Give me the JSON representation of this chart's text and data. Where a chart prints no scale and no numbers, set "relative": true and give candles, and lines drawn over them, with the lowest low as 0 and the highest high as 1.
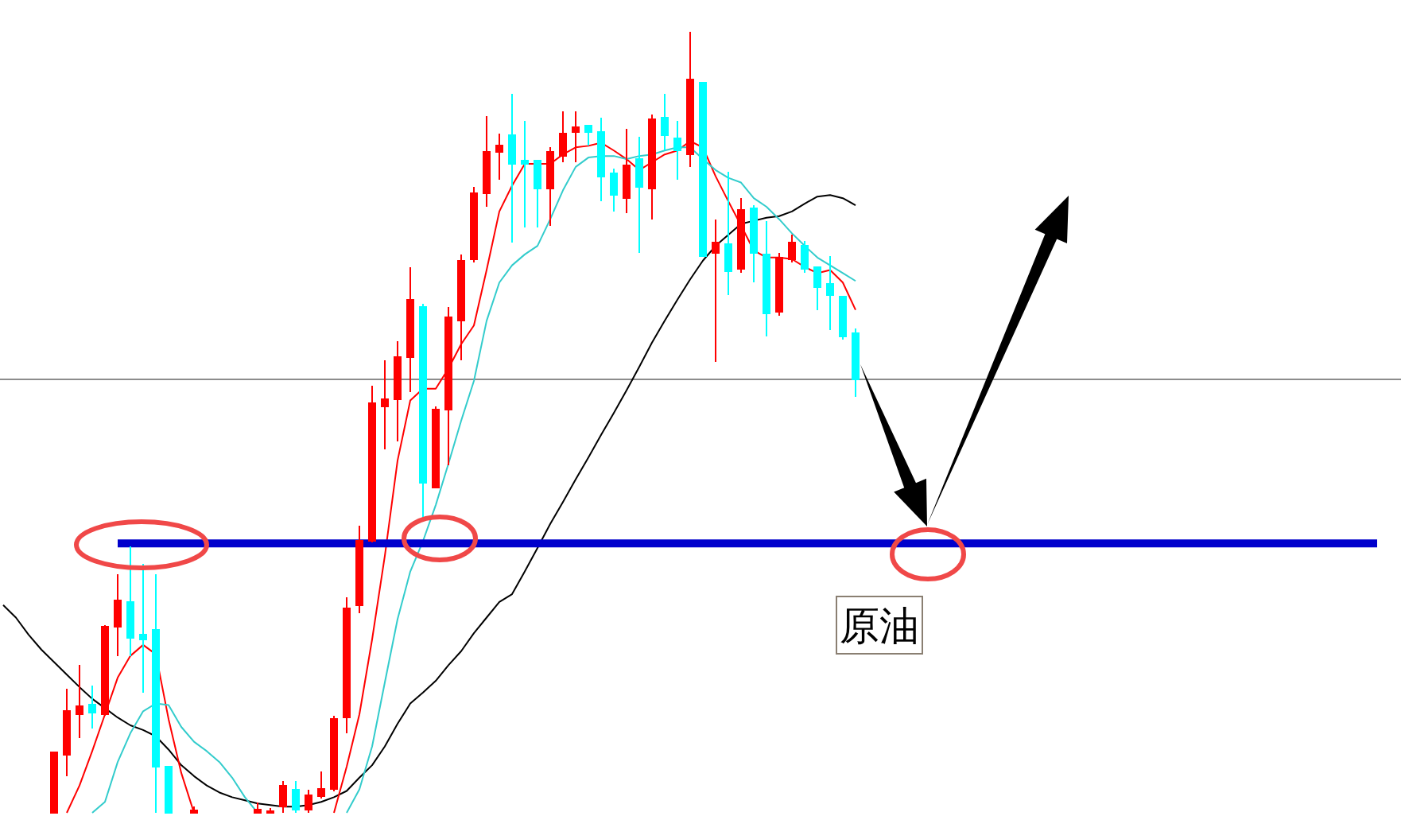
{
  "chart_data": {
    "type": "candlestick",
    "relative": true,
    "categories": [
      null,
      null,
      null,
      null,
      null,
      null,
      null,
      null,
      null,
      null,
      null,
      null,
      null,
      null,
      null,
      null,
      null,
      null,
      null,
      null,
      null,
      null,
      null,
      null,
      null,
      null,
      null,
      null,
      null,
      null,
      null,
      null,
      null,
      null,
      null,
      null,
      null,
      null,
      null,
      null,
      null,
      null,
      null,
      null,
      null,
      null,
      null,
      null,
      null,
      null,
      null,
      null,
      null,
      null,
      null,
      null,
      null,
      null,
      null,
      null,
      null,
      null,
      null,
      null,
      null,
      null,
      null,
      null,
      null,
      null,
      null,
      null,
      null,
      null,
      null,
      null,
      null,
      null,
      null,
      null,
      null,
      null,
      null,
      null,
      null,
      null,
      null,
      null,
      null,
      null,
      null,
      null,
      null,
      null,
      null,
      null,
      null,
      null,
      null,
      null,
      null,
      null,
      null,
      null,
      null,
      null,
      null,
      null,
      null,
      null
    ],
    "ohlc": [
      null,
      null,
      null,
      null,
      [
        0,
        0.077,
        0,
        0.077
      ],
      [
        0.074,
        0.159,
        0.047,
        0.13
      ],
      [
        0.126,
        0.189,
        0.096,
        0.136
      ],
      [
        0.138,
        0.163,
        0.108,
        0.128
      ],
      [
        0.126,
        0.24,
        0.124,
        0.238
      ],
      [
        0.238,
        0.305,
        0.201,
        0.272
      ],
      [
        0.27,
        0.341,
        0.201,
        0.224
      ],
      [
        0.228,
        0.319,
        0.154,
        0.222
      ],
      [
        0.234,
        0.305,
        0,
        0.059
      ],
      [
        0.059,
        0.059,
        0,
        0
      ],
      null,
      [
        0,
        0.008,
        0,
        0.003
      ],
      null,
      null,
      null,
      null,
      [
        0,
        0.013,
        0,
        0.004
      ],
      [
        0,
        0.006,
        0,
        0.002
      ],
      [
        0.008,
        0.041,
        0,
        0.035
      ],
      [
        0.03,
        0.041,
        0,
        0.004
      ],
      [
        0.004,
        0.03,
        0,
        0.022
      ],
      [
        0.021,
        0.053,
        0.018,
        0.031
      ],
      [
        0.031,
        0.124,
        0.028,
        0.12
      ],
      [
        0.122,
        0.276,
        0.102,
        0.262
      ],
      [
        0.266,
        0.368,
        0.256,
        0.348
      ],
      [
        0.348,
        0.547,
        0.346,
        0.524
      ],
      [
        0.52,
        0.579,
        0.465,
        0.53
      ],
      [
        0.53,
        0.604,
        0.476,
        0.583
      ],
      [
        0.583,
        0.699,
        0.539,
        0.657
      ],
      [
        0.648,
        0.652,
        0.376,
        0.423
      ],
      [
        0.417,
        0.52,
        0.415,
        0.516
      ],
      [
        0.516,
        0.648,
        0.445,
        0.634
      ],
      [
        0.63,
        0.715,
        0.579,
        0.707
      ],
      [
        0.709,
        0.801,
        0.705,
        0.793
      ],
      [
        0.793,
        0.892,
        0.776,
        0.846
      ],
      [
        0.846,
        0.87,
        0.811,
        0.854
      ],
      [
        0.868,
        0.921,
        0.73,
        0.831
      ],
      [
        0.835,
        0.886,
        0.75,
        0.831
      ],
      [
        0.835,
        0.835,
        0.75,
        0.799
      ],
      [
        0.799,
        0.852,
        0.752,
        0.846
      ],
      [
        0.841,
        0.898,
        0.833,
        0.87
      ],
      [
        0.872,
        0.898,
        0.833,
        0.878
      ],
      [
        0.88,
        0.88,
        0.854,
        0.872
      ],
      [
        0.872,
        0.89,
        0.783,
        0.815
      ],
      [
        0.819,
        0.825,
        0.77,
        0.791
      ],
      [
        0.787,
        0.876,
        0.768,
        0.829
      ],
      [
        0.837,
        0.866,
        0.717,
        0.801
      ],
      [
        0.799,
        0.894,
        0.76,
        0.888
      ],
      [
        0.89,
        0.921,
        0.848,
        0.868
      ],
      [
        0.864,
        0.886,
        0.811,
        0.848
      ],
      [
        0.843,
        1,
        0.827,
        0.939
      ],
      [
        0.935,
        0.935,
        0.713,
        0.713
      ],
      [
        0.717,
        0.76,
        0.577,
        0.73
      ],
      [
        0.728,
        0.821,
        0.663,
        0.693
      ],
      [
        0.697,
        0.787,
        0.691,
        0.772
      ],
      [
        0.774,
        0.778,
        0.679,
        0.717
      ],
      [
        0.715,
        0.758,
        0.61,
        0.64
      ],
      [
        0.642,
        0.717,
        0.636,
        0.711
      ],
      [
        0.709,
        0.74,
        0.705,
        0.73
      ],
      [
        0.726,
        0.732,
        0.691,
        0.697
      ],
      [
        0.699,
        0.699,
        0.644,
        0.673
      ],
      [
        0.677,
        0.713,
        0.618,
        0.663
      ],
      [
        0.661,
        0.661,
        0.606,
        0.61
      ],
      [
        0.614,
        0.62,
        0.533,
        0.555
      ],
      null,
      null,
      null,
      null,
      null,
      null,
      null,
      null,
      null,
      null,
      null,
      null,
      null,
      null,
      null,
      null,
      null,
      null,
      null,
      null,
      null,
      null,
      null,
      null,
      null,
      null,
      null,
      null,
      null,
      null,
      null,
      null,
      null,
      null,
      null,
      null,
      null,
      null,
      null,
      null,
      null,
      null
    ],
    "colors": [
      null,
      null,
      null,
      null,
      "#ff0000",
      "#ff0000",
      "#ff0000",
      "#00ffff",
      "#ff0000",
      "#ff0000",
      "#00ffff",
      "#00ffff",
      "#00ffff",
      "#00ffff",
      null,
      "#ff0000",
      null,
      null,
      null,
      null,
      "#ff0000",
      "#ff0000",
      "#ff0000",
      "#00ffff",
      "#ff0000",
      "#ff0000",
      "#ff0000",
      "#ff0000",
      "#ff0000",
      "#ff0000",
      "#ff0000",
      "#ff0000",
      "#ff0000",
      "#00ffff",
      "#ff0000",
      "#ff0000",
      "#ff0000",
      "#ff0000",
      "#ff0000",
      "#ff0000",
      "#00ffff",
      "#00ffff",
      "#00ffff",
      "#ff0000",
      "#ff0000",
      "#ff0000",
      "#00ffff",
      "#00ffff",
      "#00ffff",
      "#ff0000",
      "#00ffff",
      "#ff0000",
      "#00ffff",
      "#00ffff",
      "#ff0000",
      "#00ffff",
      "#ff0000",
      "#00ffff",
      "#ff0000",
      "#00ffff",
      "#00ffff",
      "#ff0000",
      "#ff0000",
      "#00ffff",
      "#00ffff",
      "#00ffff",
      "#00ffff",
      "#00ffff",
      null,
      null,
      null,
      null,
      null,
      null,
      null,
      null,
      null,
      null,
      null,
      null,
      null,
      null,
      null,
      null,
      null,
      null,
      null,
      null,
      null,
      null,
      null,
      null,
      null,
      null,
      null,
      null,
      null,
      null,
      null,
      null,
      null,
      null,
      null,
      null,
      null,
      null,
      null,
      null,
      null,
      null
    ],
    "series": [
      {
        "type": "line",
        "color": "#000000",
        "values": [
          0.266,
          0.25,
          0.228,
          0.209,
          0.193,
          0.177,
          0.161,
          0.146,
          0.134,
          0.122,
          0.112,
          0.106,
          0.098,
          0.081,
          0.061,
          0.047,
          0.035,
          0.026,
          0.02,
          0.016,
          0.012,
          0.01,
          0.008,
          0.008,
          0.01,
          0.014,
          0.02,
          0.028,
          0.045,
          0.061,
          0.085,
          0.114,
          0.14,
          0.154,
          0.169,
          0.189,
          0.207,
          0.23,
          0.25,
          0.27,
          0.28,
          0.309,
          0.339,
          0.37,
          0.398,
          0.427,
          0.455,
          0.484,
          0.512,
          0.541,
          0.571,
          0.602,
          0.63,
          0.657,
          0.683,
          0.707,
          0.726,
          0.74,
          0.754,
          0.758,
          0.762,
          0.764,
          0.77,
          0.78,
          0.789,
          0.791,
          0.787,
          0.778,
          null,
          null,
          null,
          null,
          null,
          null,
          null,
          null,
          null,
          null,
          null,
          null,
          null,
          null,
          null,
          null,
          null,
          null,
          null,
          null,
          null,
          null,
          null,
          null,
          null,
          null,
          null,
          null,
          null,
          null,
          null,
          null,
          null,
          null,
          null,
          null,
          null,
          null,
          null,
          null,
          null,
          null
        ]
      },
      {
        "type": "line",
        "color": "#ff0000",
        "values": [
          null,
          null,
          null,
          null,
          null,
          0,
          0.035,
          0.079,
          0.126,
          0.173,
          0.201,
          0.215,
          0.203,
          0.12,
          0.051,
          0,
          null,
          null,
          null,
          null,
          null,
          null,
          null,
          null,
          null,
          null,
          0,
          0.059,
          0.126,
          0.222,
          0.329,
          0.451,
          0.528,
          0.543,
          0.543,
          0.569,
          0.6,
          0.624,
          0.695,
          0.77,
          0.803,
          0.831,
          0.831,
          0.831,
          0.843,
          0.852,
          0.854,
          0.858,
          0.848,
          0.837,
          0.823,
          0.833,
          0.843,
          0.848,
          0.86,
          0.852,
          0.815,
          0.783,
          0.752,
          0.72,
          0.711,
          0.711,
          0.709,
          0.699,
          0.691,
          0.695,
          0.679,
          0.644,
          null,
          null,
          null,
          null,
          null,
          null,
          null,
          null,
          null,
          null,
          null,
          null,
          null,
          null,
          null,
          null,
          null,
          null,
          null,
          null,
          null,
          null,
          null,
          null,
          null,
          null,
          null,
          null,
          null,
          null,
          null,
          null,
          null,
          null,
          null,
          null,
          null,
          null,
          null,
          null,
          null,
          null
        ]
      },
      {
        "type": "line",
        "color": "#33cccc",
        "values": [
          null,
          null,
          null,
          null,
          null,
          null,
          null,
          0,
          0.014,
          0.065,
          0.102,
          0.13,
          0.14,
          0.138,
          0.11,
          0.091,
          0.079,
          0.065,
          0.045,
          0.02,
          0,
          null,
          null,
          null,
          null,
          null,
          null,
          0,
          0.03,
          0.085,
          0.167,
          0.248,
          0.309,
          0.348,
          0.394,
          0.447,
          0.502,
          0.553,
          0.63,
          0.679,
          0.701,
          0.715,
          0.726,
          0.76,
          0.797,
          0.827,
          0.839,
          0.841,
          0.841,
          0.837,
          0.841,
          0.843,
          0.848,
          0.852,
          0.852,
          0.837,
          0.823,
          0.813,
          0.807,
          0.787,
          0.776,
          0.76,
          0.742,
          0.726,
          0.711,
          0.701,
          0.691,
          0.681,
          null,
          null,
          null,
          null,
          null,
          null,
          null,
          null,
          null,
          null,
          null,
          null,
          null,
          null,
          null,
          null,
          null,
          null,
          null,
          null,
          null,
          null,
          null,
          null,
          null,
          null,
          null,
          null,
          null,
          null,
          null,
          null,
          null,
          null,
          null,
          null,
          null,
          null,
          null,
          null,
          null,
          null
        ]
      },
      {
        "type": "line",
        "color": "#0000cc",
        "values": [
          null,
          null,
          null,
          null,
          null,
          null,
          null,
          null,
          null,
          0.345,
          0.345,
          0.345,
          0.345,
          0.345,
          0.345,
          0.345,
          0.345,
          0.345,
          0.345,
          0.345,
          0.345,
          0.345,
          0.345,
          0.345,
          0.345,
          0.345,
          0.345,
          0.345,
          0.345,
          0.345,
          0.345,
          0.345,
          0.345,
          0.345,
          0.345,
          0.345,
          0.345,
          0.345,
          0.345,
          0.345,
          0.345,
          0.345,
          0.345,
          0.345,
          0.345,
          0.345,
          0.345,
          0.345,
          0.345,
          0.345,
          0.345,
          0.345,
          0.345,
          0.345,
          0.345,
          0.345,
          0.345,
          0.345,
          0.345,
          0.345,
          0.345,
          0.345,
          0.345,
          0.345,
          0.345,
          0.345,
          0.345,
          0.345,
          0.345,
          0.345,
          0.345,
          0.345,
          0.345,
          0.345,
          0.345,
          0.345,
          0.345,
          0.345,
          0.345,
          0.345,
          0.345,
          0.345,
          0.345,
          0.345,
          0.345,
          0.345,
          0.345,
          0.345,
          0.345,
          0.345,
          0.345,
          0.345,
          0.345,
          0.345,
          0.345,
          0.345,
          0.345,
          0.345,
          0.345,
          0.345,
          0.345,
          0.345,
          0.345,
          0.345,
          0.345,
          0.345,
          0.345,
          0.345,
          0.345,
          null
        ]
      }
    ],
    "ref_lines": [
      {
        "axis": "y",
        "value": 0.555,
        "color": "#8c8c8c"
      }
    ],
    "annotations": [
      "原油"
    ]
  }
}
